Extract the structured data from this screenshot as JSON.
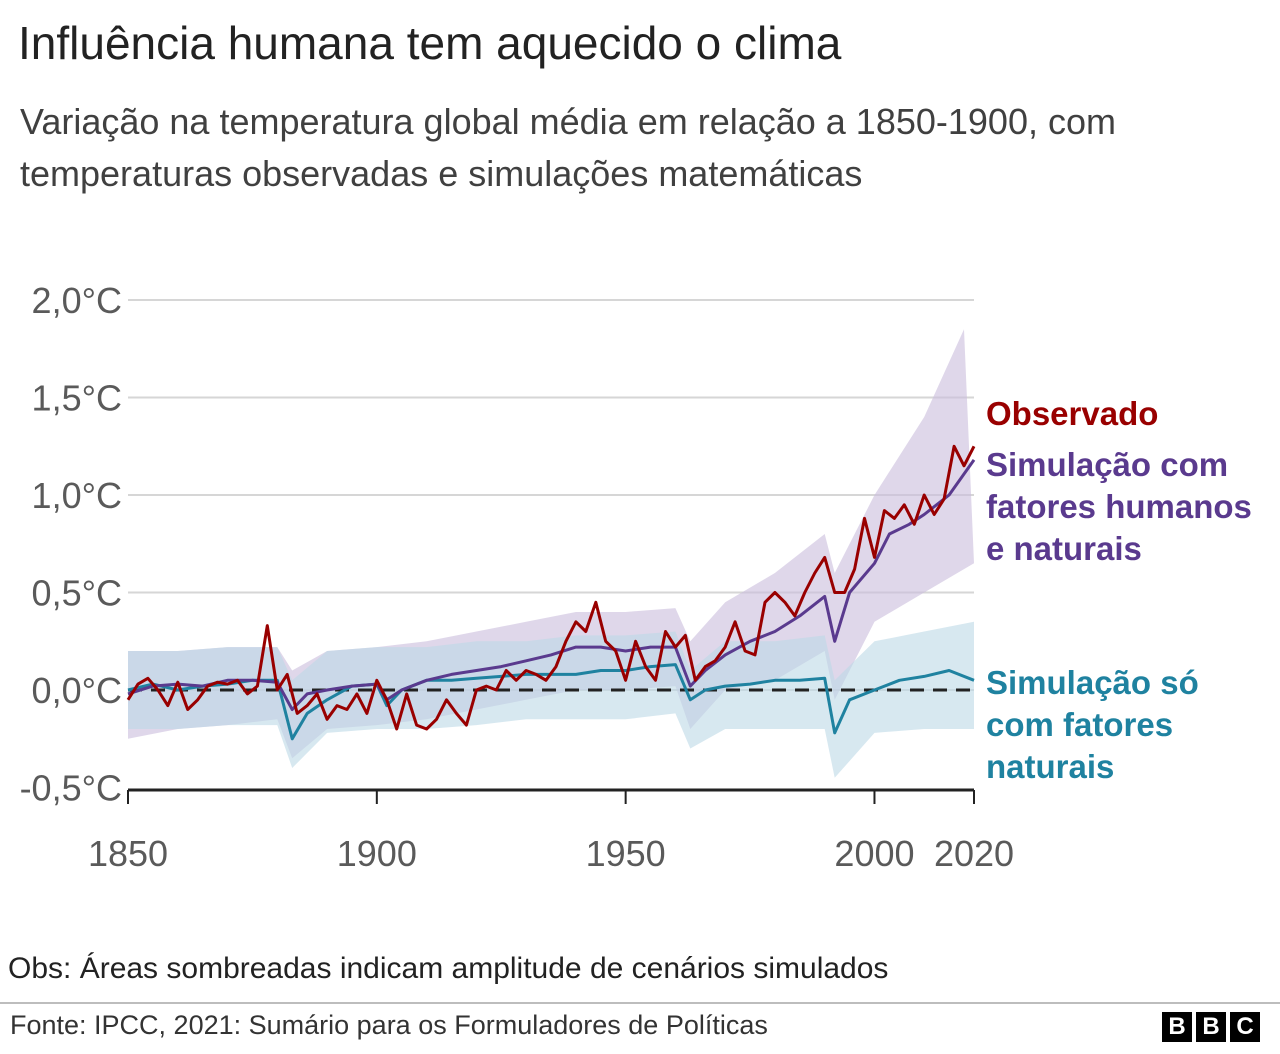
{
  "title": "Influência humana tem aquecido o clima",
  "subtitle": "Variação na temperatura global média em relação a 1850-1900, com temperaturas observadas e simulações matemáticas",
  "note": "Obs: Áreas sombreadas indicam amplitude de cenários simulados",
  "source": "Fonte: IPCC, 2021: Sumário para os Formuladores de Políticas",
  "logo": [
    "B",
    "B",
    "C"
  ],
  "colors": {
    "observed": "#990000",
    "human_natural": "#5a3a8e",
    "natural_only": "#1f82a0",
    "human_natural_band": "#c9bddc",
    "natural_only_band": "#bcd9e6",
    "grid": "#d6d6d6",
    "baseline": "#222222"
  },
  "chart_data": {
    "type": "line",
    "title": "Influência humana tem aquecido o clima",
    "xlabel": "",
    "ylabel": "",
    "xlim": [
      1850,
      2020
    ],
    "ylim": [
      -0.5,
      2.0
    ],
    "grid": true,
    "legend_placement": "right, next to series ends",
    "x_ticks": [
      1850,
      1900,
      1950,
      2000,
      2020
    ],
    "y_ticks": [
      {
        "value": 2.0,
        "label": "2,0°C"
      },
      {
        "value": 1.5,
        "label": "1,5°C"
      },
      {
        "value": 1.0,
        "label": "1,0°C"
      },
      {
        "value": 0.5,
        "label": "0,5°C"
      },
      {
        "value": 0.0,
        "label": "0,0°C"
      },
      {
        "value": -0.5,
        "label": "-0,5°C"
      }
    ],
    "reference_line": {
      "value": 0.0,
      "style": "dashed"
    },
    "series": [
      {
        "name": "Observado",
        "label_lines": [
          "Observado"
        ],
        "color": "#990000",
        "points": [
          [
            1850,
            -0.05
          ],
          [
            1852,
            0.03
          ],
          [
            1854,
            0.06
          ],
          [
            1856,
            0.0
          ],
          [
            1858,
            -0.08
          ],
          [
            1860,
            0.04
          ],
          [
            1862,
            -0.1
          ],
          [
            1864,
            -0.05
          ],
          [
            1866,
            0.02
          ],
          [
            1868,
            0.04
          ],
          [
            1870,
            0.03
          ],
          [
            1872,
            0.05
          ],
          [
            1874,
            -0.02
          ],
          [
            1876,
            0.02
          ],
          [
            1878,
            0.33
          ],
          [
            1880,
            0.0
          ],
          [
            1882,
            0.08
          ],
          [
            1884,
            -0.12
          ],
          [
            1886,
            -0.08
          ],
          [
            1888,
            -0.02
          ],
          [
            1890,
            -0.15
          ],
          [
            1892,
            -0.08
          ],
          [
            1894,
            -0.1
          ],
          [
            1896,
            -0.02
          ],
          [
            1898,
            -0.12
          ],
          [
            1900,
            0.05
          ],
          [
            1902,
            -0.05
          ],
          [
            1904,
            -0.2
          ],
          [
            1906,
            -0.02
          ],
          [
            1908,
            -0.18
          ],
          [
            1910,
            -0.2
          ],
          [
            1912,
            -0.15
          ],
          [
            1914,
            -0.05
          ],
          [
            1916,
            -0.12
          ],
          [
            1918,
            -0.18
          ],
          [
            1920,
            0.0
          ],
          [
            1922,
            0.02
          ],
          [
            1924,
            0.0
          ],
          [
            1926,
            0.1
          ],
          [
            1928,
            0.05
          ],
          [
            1930,
            0.1
          ],
          [
            1932,
            0.08
          ],
          [
            1934,
            0.05
          ],
          [
            1936,
            0.12
          ],
          [
            1938,
            0.25
          ],
          [
            1940,
            0.35
          ],
          [
            1942,
            0.3
          ],
          [
            1944,
            0.45
          ],
          [
            1946,
            0.25
          ],
          [
            1948,
            0.2
          ],
          [
            1950,
            0.05
          ],
          [
            1952,
            0.25
          ],
          [
            1954,
            0.12
          ],
          [
            1956,
            0.05
          ],
          [
            1958,
            0.3
          ],
          [
            1960,
            0.22
          ],
          [
            1962,
            0.28
          ],
          [
            1964,
            0.05
          ],
          [
            1966,
            0.12
          ],
          [
            1968,
            0.15
          ],
          [
            1970,
            0.22
          ],
          [
            1972,
            0.35
          ],
          [
            1974,
            0.2
          ],
          [
            1976,
            0.18
          ],
          [
            1978,
            0.45
          ],
          [
            1980,
            0.5
          ],
          [
            1982,
            0.45
          ],
          [
            1984,
            0.38
          ],
          [
            1986,
            0.5
          ],
          [
            1988,
            0.6
          ],
          [
            1990,
            0.68
          ],
          [
            1992,
            0.5
          ],
          [
            1994,
            0.5
          ],
          [
            1996,
            0.62
          ],
          [
            1998,
            0.88
          ],
          [
            2000,
            0.68
          ],
          [
            2002,
            0.92
          ],
          [
            2004,
            0.88
          ],
          [
            2006,
            0.95
          ],
          [
            2008,
            0.85
          ],
          [
            2010,
            1.0
          ],
          [
            2012,
            0.9
          ],
          [
            2014,
            0.98
          ],
          [
            2016,
            1.25
          ],
          [
            2018,
            1.15
          ],
          [
            2020,
            1.25
          ]
        ]
      },
      {
        "name": "Simulação com fatores humanos e naturais",
        "label_lines": [
          "Simulação com",
          "fatores humanos",
          "e naturais"
        ],
        "color": "#5a3a8e",
        "points": [
          [
            1850,
            -0.02
          ],
          [
            1855,
            0.02
          ],
          [
            1860,
            0.03
          ],
          [
            1865,
            0.02
          ],
          [
            1870,
            0.05
          ],
          [
            1875,
            0.05
          ],
          [
            1880,
            0.04
          ],
          [
            1883,
            -0.1
          ],
          [
            1886,
            -0.02
          ],
          [
            1890,
            0.0
          ],
          [
            1895,
            0.02
          ],
          [
            1900,
            0.03
          ],
          [
            1902,
            -0.05
          ],
          [
            1905,
            0.0
          ],
          [
            1910,
            0.05
          ],
          [
            1915,
            0.08
          ],
          [
            1920,
            0.1
          ],
          [
            1925,
            0.12
          ],
          [
            1930,
            0.15
          ],
          [
            1935,
            0.18
          ],
          [
            1940,
            0.22
          ],
          [
            1945,
            0.22
          ],
          [
            1950,
            0.2
          ],
          [
            1955,
            0.22
          ],
          [
            1960,
            0.22
          ],
          [
            1963,
            0.02
          ],
          [
            1966,
            0.1
          ],
          [
            1970,
            0.18
          ],
          [
            1975,
            0.25
          ],
          [
            1980,
            0.3
          ],
          [
            1985,
            0.38
          ],
          [
            1990,
            0.48
          ],
          [
            1992,
            0.25
          ],
          [
            1995,
            0.5
          ],
          [
            2000,
            0.65
          ],
          [
            2003,
            0.8
          ],
          [
            2007,
            0.85
          ],
          [
            2010,
            0.9
          ],
          [
            2015,
            1.0
          ],
          [
            2020,
            1.18
          ]
        ],
        "band_upper": [
          [
            1850,
            0.2
          ],
          [
            1860,
            0.2
          ],
          [
            1870,
            0.22
          ],
          [
            1880,
            0.22
          ],
          [
            1883,
            0.1
          ],
          [
            1890,
            0.2
          ],
          [
            1900,
            0.22
          ],
          [
            1910,
            0.25
          ],
          [
            1920,
            0.3
          ],
          [
            1930,
            0.35
          ],
          [
            1940,
            0.4
          ],
          [
            1950,
            0.4
          ],
          [
            1960,
            0.42
          ],
          [
            1963,
            0.25
          ],
          [
            1970,
            0.45
          ],
          [
            1980,
            0.6
          ],
          [
            1990,
            0.8
          ],
          [
            1992,
            0.6
          ],
          [
            2000,
            1.0
          ],
          [
            2010,
            1.4
          ],
          [
            2018,
            1.85
          ]
        ],
        "band_lower": [
          [
            1850,
            -0.25
          ],
          [
            1860,
            -0.2
          ],
          [
            1870,
            -0.18
          ],
          [
            1880,
            -0.15
          ],
          [
            1883,
            -0.35
          ],
          [
            1890,
            -0.2
          ],
          [
            1900,
            -0.18
          ],
          [
            1910,
            -0.15
          ],
          [
            1920,
            -0.1
          ],
          [
            1930,
            -0.05
          ],
          [
            1940,
            0.0
          ],
          [
            1950,
            0.0
          ],
          [
            1960,
            0.02
          ],
          [
            1963,
            -0.2
          ],
          [
            1970,
            0.0
          ],
          [
            1980,
            0.05
          ],
          [
            1990,
            0.2
          ],
          [
            1992,
            -0.05
          ],
          [
            2000,
            0.35
          ],
          [
            2010,
            0.5
          ],
          [
            2020,
            0.65
          ]
        ]
      },
      {
        "name": "Simulação só com fatores naturais",
        "label_lines": [
          "Simulação só",
          "com fatores",
          "naturais"
        ],
        "color": "#1f82a0",
        "points": [
          [
            1850,
            0.0
          ],
          [
            1855,
            0.03
          ],
          [
            1860,
            0.0
          ],
          [
            1865,
            0.02
          ],
          [
            1870,
            0.03
          ],
          [
            1875,
            0.05
          ],
          [
            1880,
            0.05
          ],
          [
            1883,
            -0.25
          ],
          [
            1886,
            -0.12
          ],
          [
            1890,
            -0.05
          ],
          [
            1895,
            0.02
          ],
          [
            1900,
            0.03
          ],
          [
            1902,
            -0.08
          ],
          [
            1905,
            0.0
          ],
          [
            1910,
            0.05
          ],
          [
            1915,
            0.05
          ],
          [
            1920,
            0.06
          ],
          [
            1925,
            0.07
          ],
          [
            1930,
            0.08
          ],
          [
            1935,
            0.08
          ],
          [
            1940,
            0.08
          ],
          [
            1945,
            0.1
          ],
          [
            1950,
            0.1
          ],
          [
            1955,
            0.12
          ],
          [
            1960,
            0.13
          ],
          [
            1963,
            -0.05
          ],
          [
            1966,
            0.0
          ],
          [
            1970,
            0.02
          ],
          [
            1975,
            0.03
          ],
          [
            1980,
            0.05
          ],
          [
            1985,
            0.05
          ],
          [
            1990,
            0.06
          ],
          [
            1992,
            -0.22
          ],
          [
            1995,
            -0.05
          ],
          [
            2000,
            0.0
          ],
          [
            2005,
            0.05
          ],
          [
            2010,
            0.07
          ],
          [
            2015,
            0.1
          ],
          [
            2020,
            0.05
          ]
        ],
        "band_upper": [
          [
            1850,
            0.2
          ],
          [
            1860,
            0.2
          ],
          [
            1870,
            0.22
          ],
          [
            1880,
            0.22
          ],
          [
            1883,
            0.05
          ],
          [
            1890,
            0.2
          ],
          [
            1900,
            0.22
          ],
          [
            1910,
            0.22
          ],
          [
            1920,
            0.25
          ],
          [
            1930,
            0.25
          ],
          [
            1940,
            0.28
          ],
          [
            1950,
            0.28
          ],
          [
            1960,
            0.3
          ],
          [
            1963,
            0.1
          ],
          [
            1970,
            0.25
          ],
          [
            1980,
            0.25
          ],
          [
            1990,
            0.28
          ],
          [
            1992,
            0.05
          ],
          [
            2000,
            0.25
          ],
          [
            2010,
            0.3
          ],
          [
            2020,
            0.35
          ]
        ],
        "band_lower": [
          [
            1850,
            -0.2
          ],
          [
            1860,
            -0.2
          ],
          [
            1870,
            -0.18
          ],
          [
            1880,
            -0.18
          ],
          [
            1883,
            -0.4
          ],
          [
            1890,
            -0.22
          ],
          [
            1900,
            -0.2
          ],
          [
            1910,
            -0.2
          ],
          [
            1920,
            -0.18
          ],
          [
            1930,
            -0.15
          ],
          [
            1940,
            -0.15
          ],
          [
            1950,
            -0.15
          ],
          [
            1960,
            -0.12
          ],
          [
            1963,
            -0.3
          ],
          [
            1970,
            -0.2
          ],
          [
            1980,
            -0.2
          ],
          [
            1990,
            -0.2
          ],
          [
            1992,
            -0.45
          ],
          [
            2000,
            -0.22
          ],
          [
            2010,
            -0.2
          ],
          [
            2020,
            -0.2
          ]
        ]
      }
    ]
  }
}
